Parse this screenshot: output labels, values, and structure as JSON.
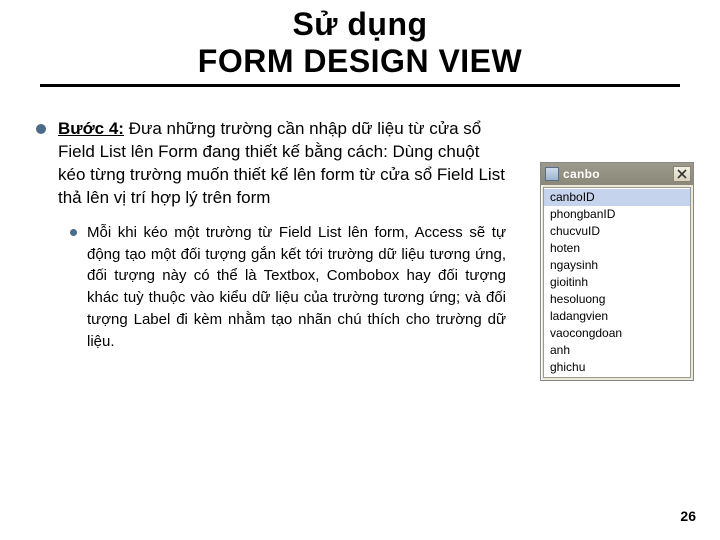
{
  "title_line1": "Sử dụng",
  "title_line2": "FORM DESIGN VIEW",
  "step": {
    "label": "Bước 4:",
    "text": " Đưa những trường cần nhập dữ liệu từ cửa sổ Field List lên Form đang thiết kế bằng cách: Dùng chuột kéo từng trường muốn thiết kế lên form từ cửa sổ Field List thả lên vị trí hợp lý trên form"
  },
  "sub": {
    "text": "Mỗi khi kéo một trường từ Field List lên form, Access sẽ tự động tạo một đối tượng gắn kết tới trường dữ liệu tương ứng, đối tượng này có thể là Textbox, Combobox hay đối tượng khác tuỳ thuộc vào kiểu dữ liệu của trường tương ứng; và đối tượng Label đi kèm nhằm tạo nhãn chú thích cho trường dữ liệu."
  },
  "fieldlist": {
    "title": "canbo",
    "items": [
      "canboID",
      "phongbanID",
      "chucvuID",
      "hoten",
      "ngaysinh",
      "gioitinh",
      "hesoluong",
      "ladangvien",
      "vaocongdoan",
      "anh",
      "ghichu"
    ],
    "selected_index": 0
  },
  "page_number": "26",
  "colors": {
    "bullet": "#4a6b8a",
    "titlebar_from": "#9c9a8c",
    "titlebar_to": "#8a8878",
    "selection": "#c6d3ec"
  }
}
